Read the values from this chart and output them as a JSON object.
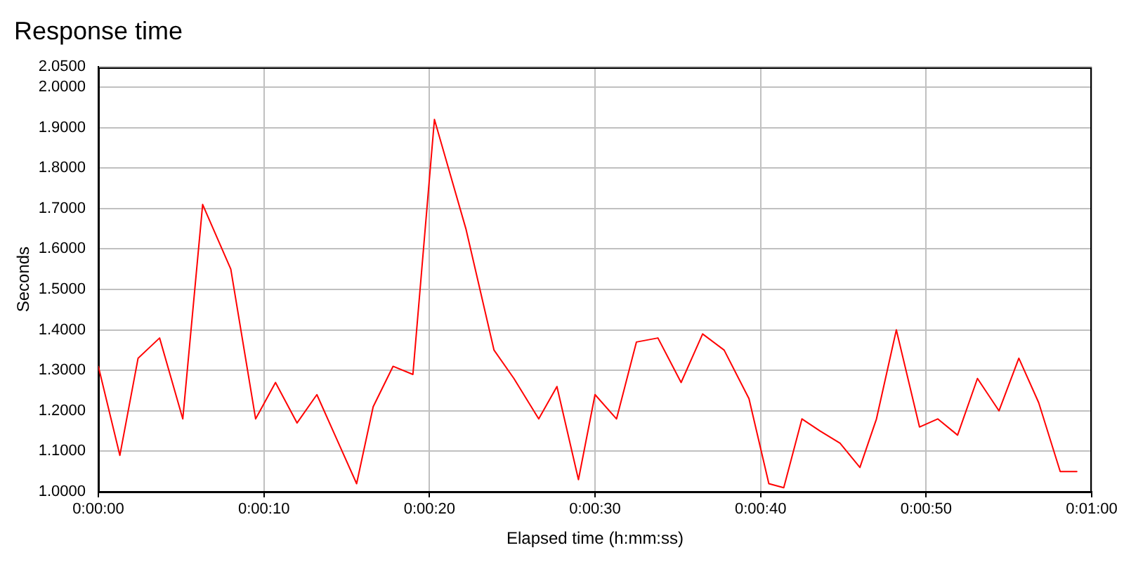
{
  "chart_data": {
    "type": "line",
    "title": "Response time",
    "xlabel": "Elapsed time (h:mm:ss)",
    "ylabel": "Seconds",
    "x": [
      0,
      1.3,
      2.4,
      3.7,
      5.1,
      6.3,
      8.0,
      9.5,
      10.7,
      12.0,
      13.2,
      14.4,
      15.6,
      16.6,
      17.8,
      19.0,
      20.3,
      22.2,
      23.9,
      25.1,
      26.6,
      27.7,
      29.0,
      30.0,
      31.3,
      32.5,
      33.8,
      35.2,
      36.5,
      37.8,
      39.3,
      40.5,
      41.4,
      42.5,
      43.6,
      44.8,
      46.0,
      47.0,
      48.2,
      49.6,
      50.7,
      51.9,
      53.1,
      54.4,
      55.6,
      56.8,
      58.1,
      59.1
    ],
    "values": [
      1.31,
      1.09,
      1.33,
      1.38,
      1.18,
      1.71,
      1.55,
      1.18,
      1.27,
      1.17,
      1.24,
      1.13,
      1.02,
      1.21,
      1.31,
      1.29,
      1.92,
      1.65,
      1.35,
      1.28,
      1.18,
      1.26,
      1.03,
      1.24,
      1.18,
      1.37,
      1.38,
      1.27,
      1.39,
      1.35,
      1.23,
      1.02,
      1.01,
      1.18,
      1.15,
      1.12,
      1.06,
      1.18,
      1.4,
      1.16,
      1.18,
      1.14,
      1.28,
      1.2,
      1.33,
      1.22,
      1.05,
      1.05
    ],
    "color": "#ff0000",
    "xlim": [
      0,
      60
    ],
    "xticks": [
      {
        "value": 0,
        "label": "0:00:00"
      },
      {
        "value": 10,
        "label": "0:00:10"
      },
      {
        "value": 20,
        "label": "0:00:20"
      },
      {
        "value": 30,
        "label": "0:00:30"
      },
      {
        "value": 40,
        "label": "0:00:40"
      },
      {
        "value": 50,
        "label": "0:00:50"
      },
      {
        "value": 60,
        "label": "0:01:00"
      }
    ],
    "ylim": [
      1,
      2.05
    ],
    "yticks": [
      {
        "value": 1,
        "label": "1.0000"
      },
      {
        "value": 1.1,
        "label": "1.1000"
      },
      {
        "value": 1.2,
        "label": "1.2000"
      },
      {
        "value": 1.3,
        "label": "1.3000"
      },
      {
        "value": 1.4,
        "label": "1.4000"
      },
      {
        "value": 1.5,
        "label": "1.5000"
      },
      {
        "value": 1.6,
        "label": "1.6000"
      },
      {
        "value": 1.7,
        "label": "1.7000"
      },
      {
        "value": 1.8,
        "label": "1.8000"
      },
      {
        "value": 1.9,
        "label": "1.9000"
      },
      {
        "value": 2,
        "label": "2.0000"
      },
      {
        "value": 2.05,
        "label": "2.0500"
      }
    ],
    "grid": true
  }
}
